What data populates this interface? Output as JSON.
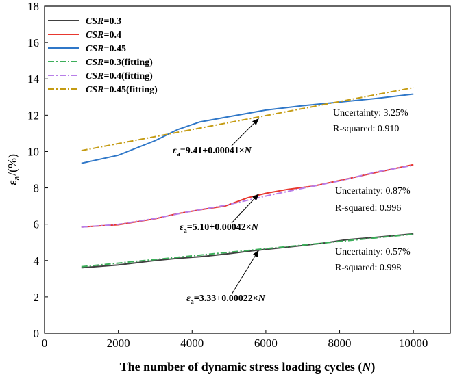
{
  "chart_data": {
    "type": "line",
    "xlabel": {
      "prefix": "The number of dynamic stress loading cycles  (",
      "var": "N",
      "suffix": ")"
    },
    "ylabel": {
      "symbol": "ε",
      "sub": "a",
      "suffix": "/(%)"
    },
    "xlim": [
      0,
      11000
    ],
    "ylim": [
      0,
      18
    ],
    "xticks": [
      0,
      2000,
      4000,
      6000,
      8000,
      10000
    ],
    "yticks": [
      0,
      2,
      4,
      6,
      8,
      10,
      12,
      14,
      16,
      18
    ],
    "legend_position": "top-left",
    "series": [
      {
        "name_var": "CSR",
        "name_rest": "=0.3",
        "color": "#404040",
        "style": "solid",
        "x": [
          1000,
          2000,
          3000,
          3600,
          4300,
          5000,
          5600,
          6400,
          7000,
          7600,
          8200,
          9000,
          10000
        ],
        "y": [
          3.6,
          3.76,
          4.0,
          4.12,
          4.22,
          4.38,
          4.53,
          4.7,
          4.83,
          4.97,
          5.15,
          5.28,
          5.47
        ]
      },
      {
        "name_var": "CSR",
        "name_rest": "=0.4",
        "color": "#e8382f",
        "style": "solid",
        "x": [
          1000,
          2000,
          3000,
          3600,
          4300,
          4900,
          5500,
          6000,
          6600,
          7300,
          8000,
          9000,
          10000
        ],
        "y": [
          5.85,
          5.97,
          6.3,
          6.58,
          6.82,
          7.0,
          7.45,
          7.7,
          7.92,
          8.1,
          8.4,
          8.85,
          9.28
        ]
      },
      {
        "name_var": "CSR",
        "name_rest": "=0.45",
        "color": "#2f77c8",
        "style": "solid",
        "x": [
          1000,
          2000,
          3000,
          3600,
          4200,
          5000,
          6000,
          7000,
          8000,
          9000,
          10000
        ],
        "y": [
          9.35,
          9.8,
          10.6,
          11.2,
          11.62,
          11.92,
          12.28,
          12.52,
          12.72,
          12.92,
          13.16
        ]
      },
      {
        "name_var": "CSR",
        "name_rest": "=0.3(fitting)",
        "color": "#3cae5a",
        "style": "dashdot",
        "x": [
          1000,
          10000
        ],
        "y": [
          3.66,
          5.45
        ]
      },
      {
        "name_var": "CSR",
        "name_rest": "=0.4(fitting)",
        "color": "#b87ee8",
        "style": "dashdot",
        "x": [
          1000,
          2000,
          3000,
          4000,
          5000,
          6000,
          7000,
          8000,
          9000,
          10000
        ],
        "y": [
          5.84,
          5.99,
          6.32,
          6.72,
          7.08,
          7.55,
          7.98,
          8.38,
          8.88,
          9.24
        ]
      },
      {
        "name_var": "CSR",
        "name_rest": "=0.45(fitting)",
        "color": "#c49b12",
        "style": "dashdot",
        "x": [
          1000,
          10000
        ],
        "y": [
          10.05,
          13.52
        ]
      }
    ],
    "annotations": [
      {
        "uncertainty": "Uncertainty: 3.25%",
        "rsquared": "R-squared: 0.910",
        "eq_sym": "ε",
        "eq_sub": "a",
        "eq_rest": "=9.41+0.00041×",
        "eq_var": "N",
        "arrow_tip": [
          5800,
          11.8
        ]
      },
      {
        "uncertainty": "Uncertainty: 0.87%",
        "rsquared": "R-squared: 0.996",
        "eq_sym": "ε",
        "eq_sub": "a",
        "eq_rest": "=5.10+0.00042×",
        "eq_var": "N",
        "arrow_tip": [
          5800,
          7.65
        ]
      },
      {
        "uncertainty": "Uncertainty: 0.57%",
        "rsquared": "R-squared: 0.998",
        "eq_sym": "ε",
        "eq_sub": "a",
        "eq_rest": "=3.33+0.00022×",
        "eq_var": "N",
        "arrow_tip": [
          5800,
          4.55
        ]
      }
    ]
  }
}
